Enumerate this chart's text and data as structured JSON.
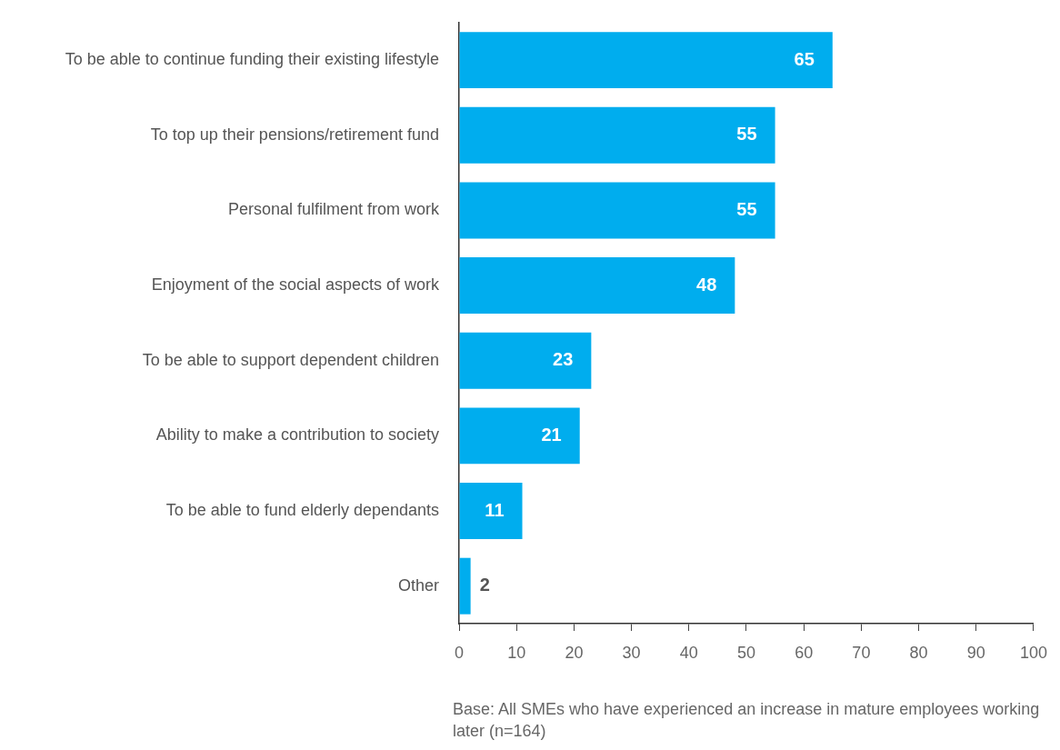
{
  "chart_data": {
    "type": "bar",
    "orientation": "horizontal",
    "categories": [
      "To be able to continue funding their existing lifestyle",
      "To top up their pensions/retirement fund",
      "Personal fulfilment from work",
      "Enjoyment of the social aspects of work",
      "To be able to support dependent children",
      "Ability to make a contribution to society",
      "To be able to fund elderly dependants",
      "Other"
    ],
    "values": [
      65,
      55,
      55,
      48,
      23,
      21,
      11,
      2
    ],
    "color": "#00adee",
    "xlim": [
      0,
      100
    ],
    "xticks": [
      0,
      10,
      20,
      30,
      40,
      50,
      60,
      70,
      80,
      90,
      100
    ],
    "grid": false,
    "data_labels": true,
    "annotations": [
      "Base: All SMEs who have experienced an increase in mature employees working later (n=164)"
    ]
  }
}
